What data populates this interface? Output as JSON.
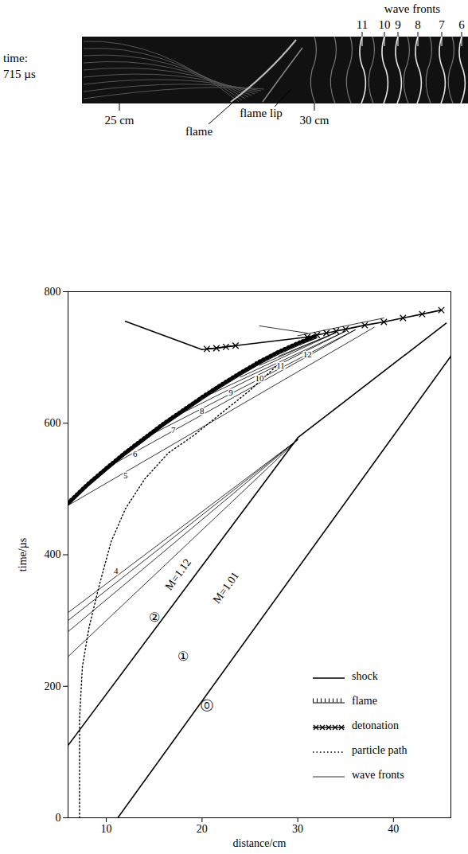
{
  "photo": {
    "time_label": "time:",
    "time": "715 µs",
    "wave_fronts_title": "wave fronts",
    "wave_fronts": [
      11,
      10,
      9,
      8,
      7,
      6
    ],
    "scale": [
      "25 cm",
      "30 cm"
    ],
    "flame": "flame",
    "flame_lip": "flame lip"
  },
  "chart_data": {
    "type": "line",
    "xlabel": "distance/cm",
    "ylabel": "time/µs",
    "xlim": [
      6,
      46
    ],
    "ylim": [
      0,
      800
    ],
    "xticks": [
      10,
      20,
      30,
      40
    ],
    "yticks": [
      0,
      200,
      400,
      600,
      800
    ],
    "grid": false,
    "legend": "lower right",
    "series": [
      {
        "name": "shock",
        "line_style": "solid",
        "marker": "none",
        "segments": [
          {
            "x": [
              11.2,
              46
            ],
            "values": [
              0,
              702
            ]
          },
          {
            "x": [
              6,
              30,
              45.5
            ],
            "values": [
              110,
              578,
              752
            ]
          },
          {
            "x": [
              12,
              20
            ],
            "values": [
              755,
              712
            ]
          },
          {
            "x": [
              20,
              31
            ],
            "values": [
              712,
              731
            ]
          }
        ]
      },
      {
        "name": "flame",
        "line_style": "hatched",
        "marker": "none",
        "segments": [
          {
            "x": [
              6,
              8,
              10,
              12,
              14,
              16,
              18,
              20,
              22,
              24,
              26,
              28,
              30,
              32
            ],
            "values": [
              475,
              503,
              528,
              552,
              574,
              596,
              616,
              636,
              655,
              673,
              690,
              705,
              718,
              730
            ]
          }
        ]
      },
      {
        "name": "detonation",
        "line_style": "solid",
        "marker": "x",
        "segments": [
          {
            "x": [
              20.5,
              21.5,
              22.5,
              23.5
            ],
            "values": [
              713,
              714,
              716,
              718
            ]
          },
          {
            "x": [
              31,
              32,
              33,
              34,
              35,
              37,
              39,
              41,
              43,
              45
            ],
            "values": [
              731,
              734,
              737,
              740,
              743,
              749,
              754,
              760,
              766,
              772
            ]
          }
        ]
      },
      {
        "name": "particle path",
        "line_style": "dotted",
        "marker": "none",
        "segments": [
          {
            "x": [
              7.2,
              7.2,
              7.5,
              8.2,
              9.2,
              10.5,
              12,
              14,
              16.5,
              19,
              22,
              25,
              28
            ],
            "values": [
              0,
              150,
              230,
              290,
              350,
              420,
              470,
              515,
              555,
              580,
              615,
              650,
              690
            ]
          }
        ]
      },
      {
        "name": "wave fronts",
        "line_style": "thin",
        "marker": "none",
        "segments": [
          {
            "x": [
              6,
              30
            ],
            "values": [
              245,
              575
            ]
          },
          {
            "x": [
              6,
              30
            ],
            "values": [
              283,
              575
            ]
          },
          {
            "x": [
              6,
              30
            ],
            "values": [
              300,
              575
            ]
          },
          {
            "x": [
              6,
              30
            ],
            "values": [
              312,
              575
            ]
          },
          {
            "x": [
              6,
              38
            ],
            "values": [
              475,
              746
            ]
          },
          {
            "x": [
              11,
              36
            ],
            "values": [
              540,
              742
            ]
          },
          {
            "x": [
              15,
              36
            ],
            "values": [
              585,
              742
            ]
          },
          {
            "x": [
              18,
              35
            ],
            "values": [
              616,
              740
            ]
          },
          {
            "x": [
              21,
              35
            ],
            "values": [
              645,
              740
            ]
          },
          {
            "x": [
              24,
              34
            ],
            "values": [
              670,
              738
            ]
          },
          {
            "x": [
              26,
              34
            ],
            "values": [
              688,
              738
            ]
          },
          {
            "x": [
              28,
              34
            ],
            "values": [
              702,
              738
            ]
          },
          {
            "x": [
              26,
              31
            ],
            "values": [
              748,
              737
            ]
          },
          {
            "x": [
              30,
              39
            ],
            "values": [
              733,
              760
            ]
          }
        ]
      }
    ],
    "annotations": [
      {
        "text": "4",
        "x": 11,
        "y": 375
      },
      {
        "text": "5",
        "x": 12,
        "y": 520
      },
      {
        "text": "6",
        "x": 13,
        "y": 553
      },
      {
        "text": "7",
        "x": 17,
        "y": 590
      },
      {
        "text": "8",
        "x": 20,
        "y": 619
      },
      {
        "text": "9",
        "x": 23,
        "y": 646
      },
      {
        "text": "10",
        "x": 26,
        "y": 668
      },
      {
        "text": "11",
        "x": 28.2,
        "y": 688
      },
      {
        "text": "12",
        "x": 31,
        "y": 705
      }
    ],
    "region_labels": [
      {
        "text": "⓪",
        "x": 20.5,
        "y": 170
      },
      {
        "text": "①",
        "x": 18,
        "y": 245
      },
      {
        "text": "②",
        "x": 15,
        "y": 305
      }
    ],
    "mach_labels": [
      {
        "text": "M=1.12",
        "x": 17.5,
        "y": 370
      },
      {
        "text": "M=1.01",
        "x": 22.5,
        "y": 350
      }
    ]
  }
}
